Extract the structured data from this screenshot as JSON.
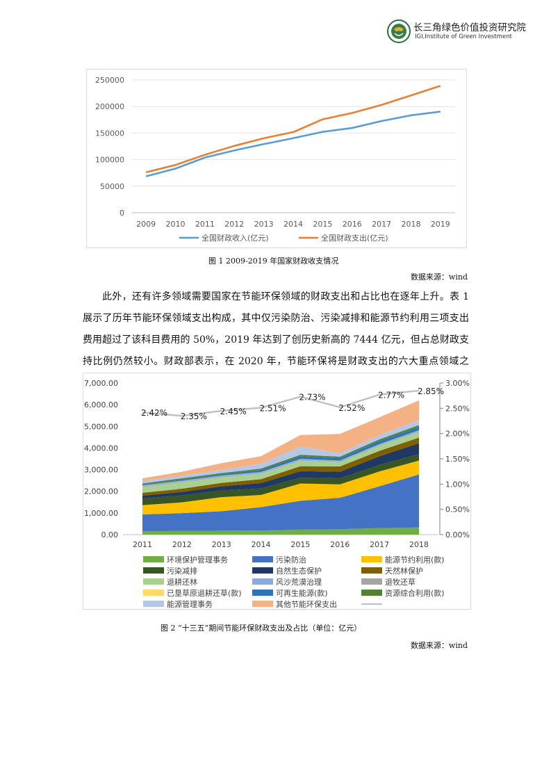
{
  "header": {
    "logo_cn": "长三角绿色价值投资研究院",
    "logo_en": "IGI,Institute of Green Investment"
  },
  "figure1": {
    "caption": "图 1 2009-2019 年国家财政收支情况",
    "source": "数据来源：wind",
    "chart_data": {
      "type": "line",
      "categories": [
        "2009",
        "2010",
        "2011",
        "2012",
        "2013",
        "2014",
        "2015",
        "2016",
        "2017",
        "2018",
        "2019"
      ],
      "series": [
        {
          "name": "全国财政收入(亿元)",
          "color": "#5b9bd5",
          "values": [
            68500,
            83100,
            103900,
            117300,
            129200,
            140400,
            152300,
            159600,
            172600,
            183400,
            190400
          ]
        },
        {
          "name": "全国财政支出(亿元)",
          "color": "#ed7d31",
          "values": [
            76300,
            89900,
            109200,
            125900,
            140200,
            151800,
            175900,
            187800,
            203100,
            220900,
            238900
          ]
        }
      ],
      "ylim": [
        0,
        250000
      ],
      "yticks": [
        "0",
        "50000",
        "100000",
        "150000",
        "200000",
        "250000"
      ],
      "grid": true,
      "legend": "bottom"
    }
  },
  "paragraph": "此外，还有许多领域需要国家在节能环保领域的财政支出和占比也在逐年上升。表 1 展示了历年节能环保领域支出构成，其中仅污染防治、污染减排和能源节约利用三项支出费用超过了该科目费用的 50%，2019 年达到了创历史新高的 7444 亿元，但占总财政支持比例仍然较小。财政部表示，在 2020 年，节能环保将是财政支出的六大重点领域之一。",
  "figure2": {
    "caption": "图 2 “十三五”期间节能环保财政支出及占比（单位：亿元）",
    "source": "数据来源：wind",
    "chart_data": {
      "type": "area",
      "categories": [
        "2011",
        "2012",
        "2013",
        "2014",
        "2015",
        "2016",
        "2017",
        "2018"
      ],
      "ylim": [
        0,
        7000
      ],
      "yticks": [
        "0.00",
        "1,000.00",
        "2,000.00",
        "3,000.00",
        "4,000.00",
        "5,000.00",
        "6,000.00",
        "7,000.00"
      ],
      "y2lim": [
        0,
        3.0
      ],
      "y2ticks": [
        "0.00%",
        "0.50%",
        "1.00%",
        "1.50%",
        "2.00%",
        "2.50%",
        "3.00%"
      ],
      "stacked": true,
      "series": [
        {
          "name": "环境保护管理事务",
          "color": "#70ad47",
          "values": [
            150,
            170,
            180,
            190,
            230,
            250,
            300,
            330
          ]
        },
        {
          "name": "污染防治",
          "color": "#4472c4",
          "values": [
            780,
            820,
            900,
            1080,
            1330,
            1450,
            1930,
            2450
          ]
        },
        {
          "name": "能源节约利用(款)",
          "color": "#ffc000",
          "values": [
            430,
            500,
            650,
            560,
            800,
            620,
            690,
            640
          ]
        },
        {
          "name": "污染减排",
          "color": "#375623",
          "values": [
            310,
            320,
            310,
            300,
            270,
            280,
            300,
            300
          ]
        },
        {
          "name": "自然生态保护",
          "color": "#203864",
          "values": [
            130,
            160,
            190,
            250,
            300,
            300,
            400,
            500
          ]
        },
        {
          "name": "天然林保护",
          "color": "#7f6000",
          "values": [
            130,
            150,
            160,
            180,
            230,
            250,
            250,
            260
          ]
        },
        {
          "name": "退耕还林",
          "color": "#a9d08e",
          "values": [
            270,
            300,
            260,
            260,
            260,
            200,
            240,
            270
          ]
        },
        {
          "name": "风沙荒漠治理",
          "color": "#8ea9db",
          "values": [
            40,
            40,
            40,
            40,
            40,
            40,
            40,
            40
          ]
        },
        {
          "name": "退牧还草",
          "color": "#a5a5a5",
          "values": [
            25,
            25,
            25,
            25,
            25,
            25,
            25,
            25
          ]
        },
        {
          "name": "已垦草原退耕还草(款)",
          "color": "#ffd966",
          "values": [
            5,
            5,
            5,
            5,
            5,
            5,
            5,
            5
          ]
        },
        {
          "name": "可再生能源(款)",
          "color": "#2e75b6",
          "values": [
            40,
            50,
            60,
            100,
            130,
            120,
            140,
            160
          ]
        },
        {
          "name": "资源综合利用(款)",
          "color": "#548235",
          "values": [
            50,
            60,
            60,
            60,
            70,
            60,
            80,
            80
          ]
        },
        {
          "name": "能源管理事务",
          "color": "#b4c7e7",
          "values": [
            100,
            130,
            150,
            220,
            380,
            160,
            200,
            230
          ]
        },
        {
          "name": "其他节能环保支出",
          "color": "#f4b183",
          "values": [
            140,
            170,
            310,
            350,
            530,
            890,
            820,
            910
          ]
        }
      ],
      "ratio": {
        "name": "",
        "color": "#bfbfbf",
        "values": [
          2.42,
          2.35,
          2.45,
          2.51,
          2.73,
          2.52,
          2.77,
          2.85
        ],
        "labels": [
          "2.42%",
          "2.35%",
          "2.45%",
          "2.51%",
          "2.73%",
          "2.52%",
          "2.77%",
          "2.85%"
        ]
      },
      "legend": "bottom"
    }
  }
}
